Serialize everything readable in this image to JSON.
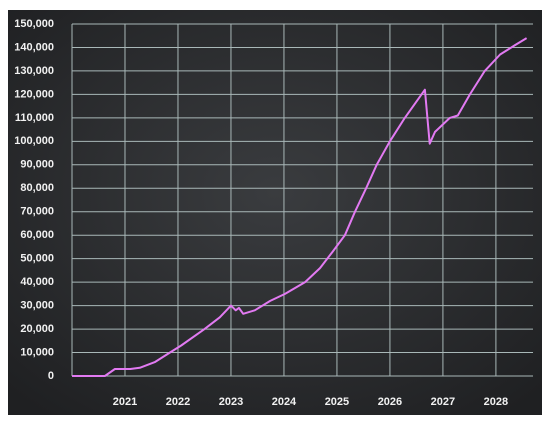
{
  "chart_data": {
    "type": "line",
    "x": [
      2020,
      2020.62,
      2020.81,
      2021.1,
      2021.28,
      2021.57,
      2021.85,
      2022.06,
      2022.5,
      2022.79,
      2023.0,
      2023.09,
      2023.15,
      2023.23,
      2023.45,
      2023.74,
      2024.02,
      2024.4,
      2024.68,
      2024.92,
      2025.15,
      2025.34,
      2025.55,
      2025.75,
      2026.0,
      2026.28,
      2026.66,
      2026.75,
      2026.85,
      2027.13,
      2027.28,
      2027.51,
      2027.79,
      2028.08,
      2028.36,
      2028.58
    ],
    "values": [
      0,
      0,
      3000,
      3000,
      3500,
      6000,
      10000,
      13000,
      20000,
      25000,
      30000,
      28000,
      29000,
      26500,
      28000,
      32000,
      35000,
      40000,
      46000,
      53000,
      60000,
      70000,
      80000,
      90000,
      100000,
      110000,
      122000,
      99000,
      104000,
      110000,
      111000,
      120000,
      130000,
      137000,
      141000,
      144000
    ],
    "color": "#e27af2",
    "xlim": [
      2020,
      2028.7
    ],
    "xticks": [
      2021,
      2022,
      2023,
      2024,
      2025,
      2026,
      2027,
      2028
    ],
    "ylim": [
      0,
      150000
    ],
    "yticks": [
      0,
      {
        "value": 10000,
        "label": "10,000"
      },
      {
        "value": 20000,
        "label": "20,000"
      },
      {
        "value": 30000,
        "label": "30,000"
      },
      {
        "value": 40000,
        "label": "40,000"
      },
      {
        "value": 50000,
        "label": "50,000"
      },
      {
        "value": 60000,
        "label": "60,000"
      },
      {
        "value": 70000,
        "label": "70,000"
      },
      {
        "value": 80000,
        "label": "80,000"
      },
      {
        "value": 90000,
        "label": "90,000"
      },
      {
        "value": 100000,
        "label": "100,000"
      },
      {
        "value": 110000,
        "label": "110,000"
      },
      {
        "value": 120000,
        "label": "120,000"
      },
      {
        "value": 130000,
        "label": "130,000"
      },
      {
        "value": 140000,
        "label": "140,000"
      },
      {
        "value": 150000,
        "label": "150,000"
      }
    ],
    "grid": true
  }
}
